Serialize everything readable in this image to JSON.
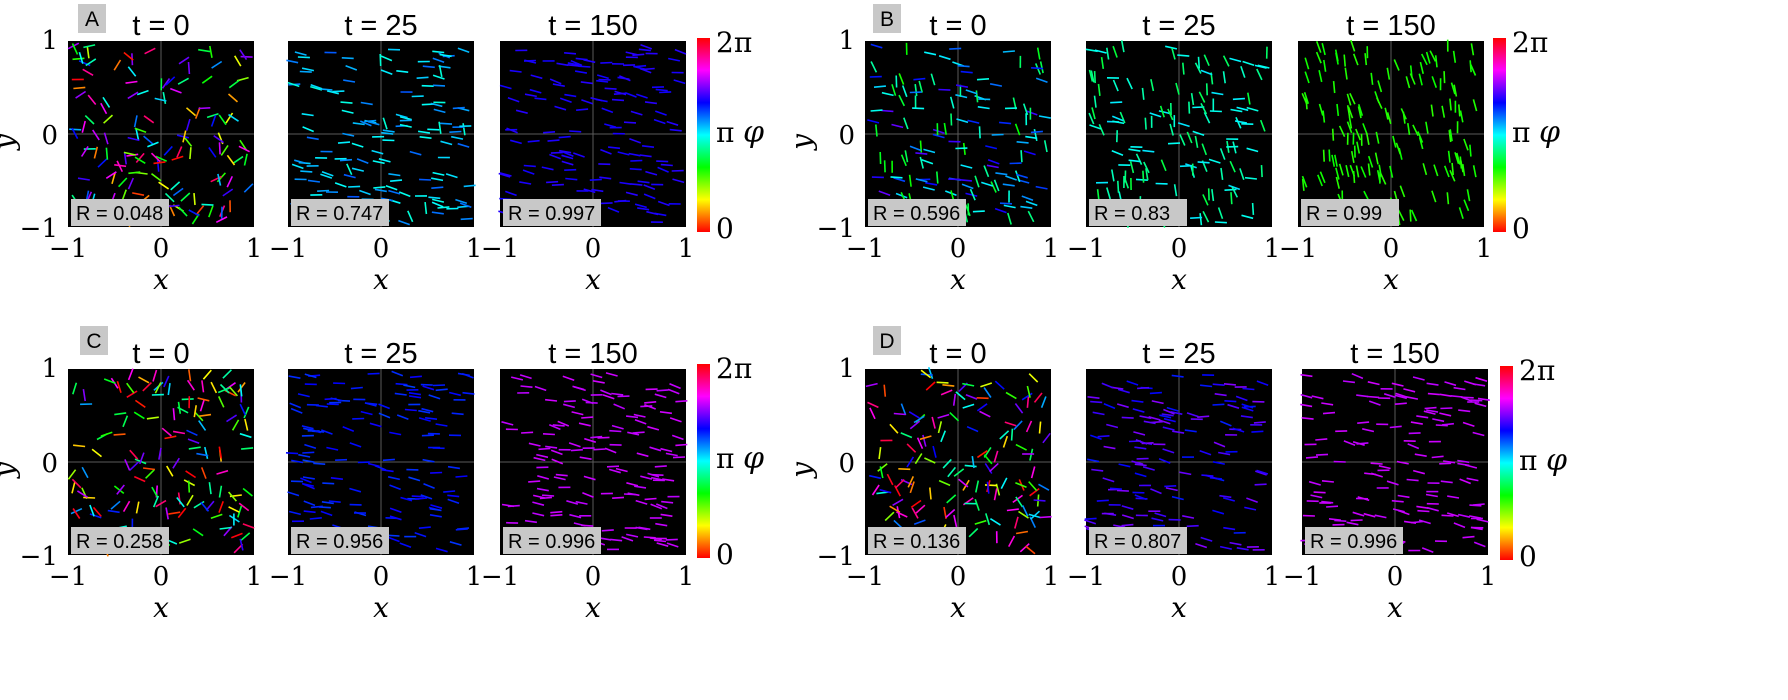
{
  "chart_data": {
    "type": "scatter",
    "description_colors": {
      "black_bg": "#000000",
      "grid": "#5a5a5a",
      "badge": "#c8c8c8"
    },
    "colorbar": {
      "label": "φ",
      "ticks": [
        "0",
        "π",
        "2π"
      ],
      "colors": [
        "#ff0000",
        "#ffff00",
        "#00ff00",
        "#00ffff",
        "#0000ff",
        "#ff00ff",
        "#ff0000"
      ]
    },
    "axis": {
      "xlabel": "x",
      "ylabel": "y",
      "xticks": [
        "−1",
        "0",
        "1"
      ],
      "yticks": [
        "1",
        "0",
        "−1"
      ],
      "xlim": [
        -1,
        1
      ],
      "ylim": [
        -1,
        1
      ]
    },
    "panels": [
      {
        "label": "A",
        "subplots": [
          {
            "title": "t = 0",
            "R": "R = 0.048",
            "phase": "random",
            "seed": 11
          },
          {
            "title": "t = 25",
            "R": "R = 0.747",
            "phase": 3.4,
            "spread": 0.45,
            "seed": 12
          },
          {
            "title": "t = 150",
            "R": "R = 0.997",
            "phase": 4.3,
            "spread": 0.05,
            "seed": 13
          }
        ]
      },
      {
        "label": "B",
        "subplots": [
          {
            "title": "t = 0",
            "R": "R = 0.596",
            "phase": 3.3,
            "spread": 1.3,
            "seed": 21
          },
          {
            "title": "t = 25",
            "R": "R = 0.83",
            "phase": 2.8,
            "spread": 0.5,
            "seed": 22
          },
          {
            "title": "t = 150",
            "R": "R = 0.99",
            "phase": 2.0,
            "spread": 0.08,
            "seed": 23
          }
        ]
      },
      {
        "label": "C",
        "subplots": [
          {
            "title": "t = 0",
            "R": "R = 0.258",
            "phase": "random",
            "seed": 31
          },
          {
            "title": "t = 25",
            "R": "R = 0.956",
            "phase": 4.1,
            "spread": 0.15,
            "seed": 32
          },
          {
            "title": "t = 150",
            "R": "R = 0.996",
            "phase": 5.0,
            "spread": 0.05,
            "seed": 33
          }
        ]
      },
      {
        "label": "D",
        "subplots": [
          {
            "title": "t = 0",
            "R": "R = 0.136",
            "phase": "random",
            "seed": 41
          },
          {
            "title": "t = 25",
            "R": "R = 0.807",
            "phase": 4.4,
            "spread": 0.35,
            "seed": 42
          },
          {
            "title": "t = 150",
            "R": "R = 0.996",
            "phase": 5.0,
            "spread": 0.05,
            "seed": 43
          }
        ]
      }
    ]
  }
}
